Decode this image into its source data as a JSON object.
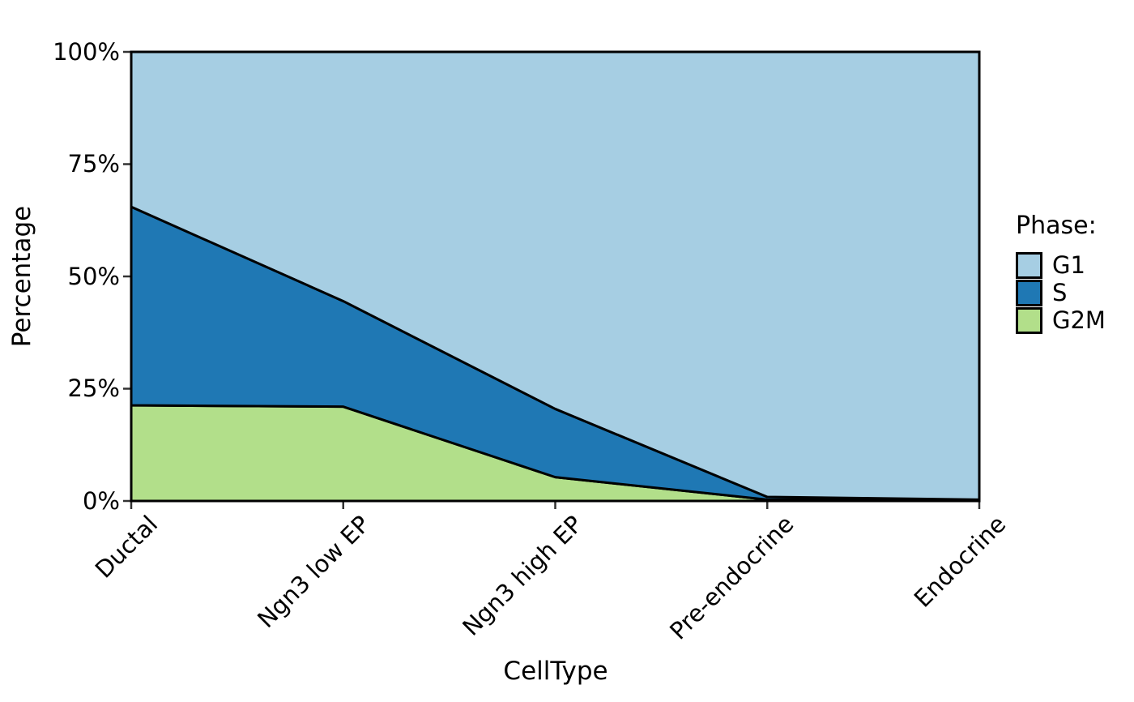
{
  "chart_data": {
    "type": "area",
    "stacked": true,
    "normalized": true,
    "title": "",
    "xlabel": "CellType",
    "ylabel": "Percentage",
    "categories": [
      "Ductal",
      "Ngn3 low EP",
      "Ngn3 high EP",
      "Pre-endocrine",
      "Endocrine"
    ],
    "series": [
      {
        "name": "G2M",
        "color": "#b2df8a",
        "values": [
          21.3,
          21.0,
          5.3,
          0.3,
          0.1
        ]
      },
      {
        "name": "S",
        "color": "#1f78b4",
        "values": [
          44.2,
          23.5,
          15.2,
          0.6,
          0.2
        ]
      },
      {
        "name": "G1",
        "color": "#a6cee3",
        "values": [
          34.5,
          55.5,
          79.5,
          99.1,
          99.7
        ]
      }
    ],
    "ylim": [
      0,
      100
    ],
    "yticks": [
      {
        "label": "0%",
        "value": 0
      },
      {
        "label": "25%",
        "value": 25
      },
      {
        "label": "50%",
        "value": 50
      },
      {
        "label": "75%",
        "value": 75
      },
      {
        "label": "100%",
        "value": 100
      }
    ],
    "grid": false,
    "line_color": "#000000",
    "tick_color": "#333333",
    "legend": {
      "title": "Phase:",
      "position": "right",
      "entries": [
        {
          "label": "G1",
          "color": "#a6cee3"
        },
        {
          "label": "S",
          "color": "#1f78b4"
        },
        {
          "label": "G2M",
          "color": "#b2df8a"
        }
      ]
    }
  }
}
